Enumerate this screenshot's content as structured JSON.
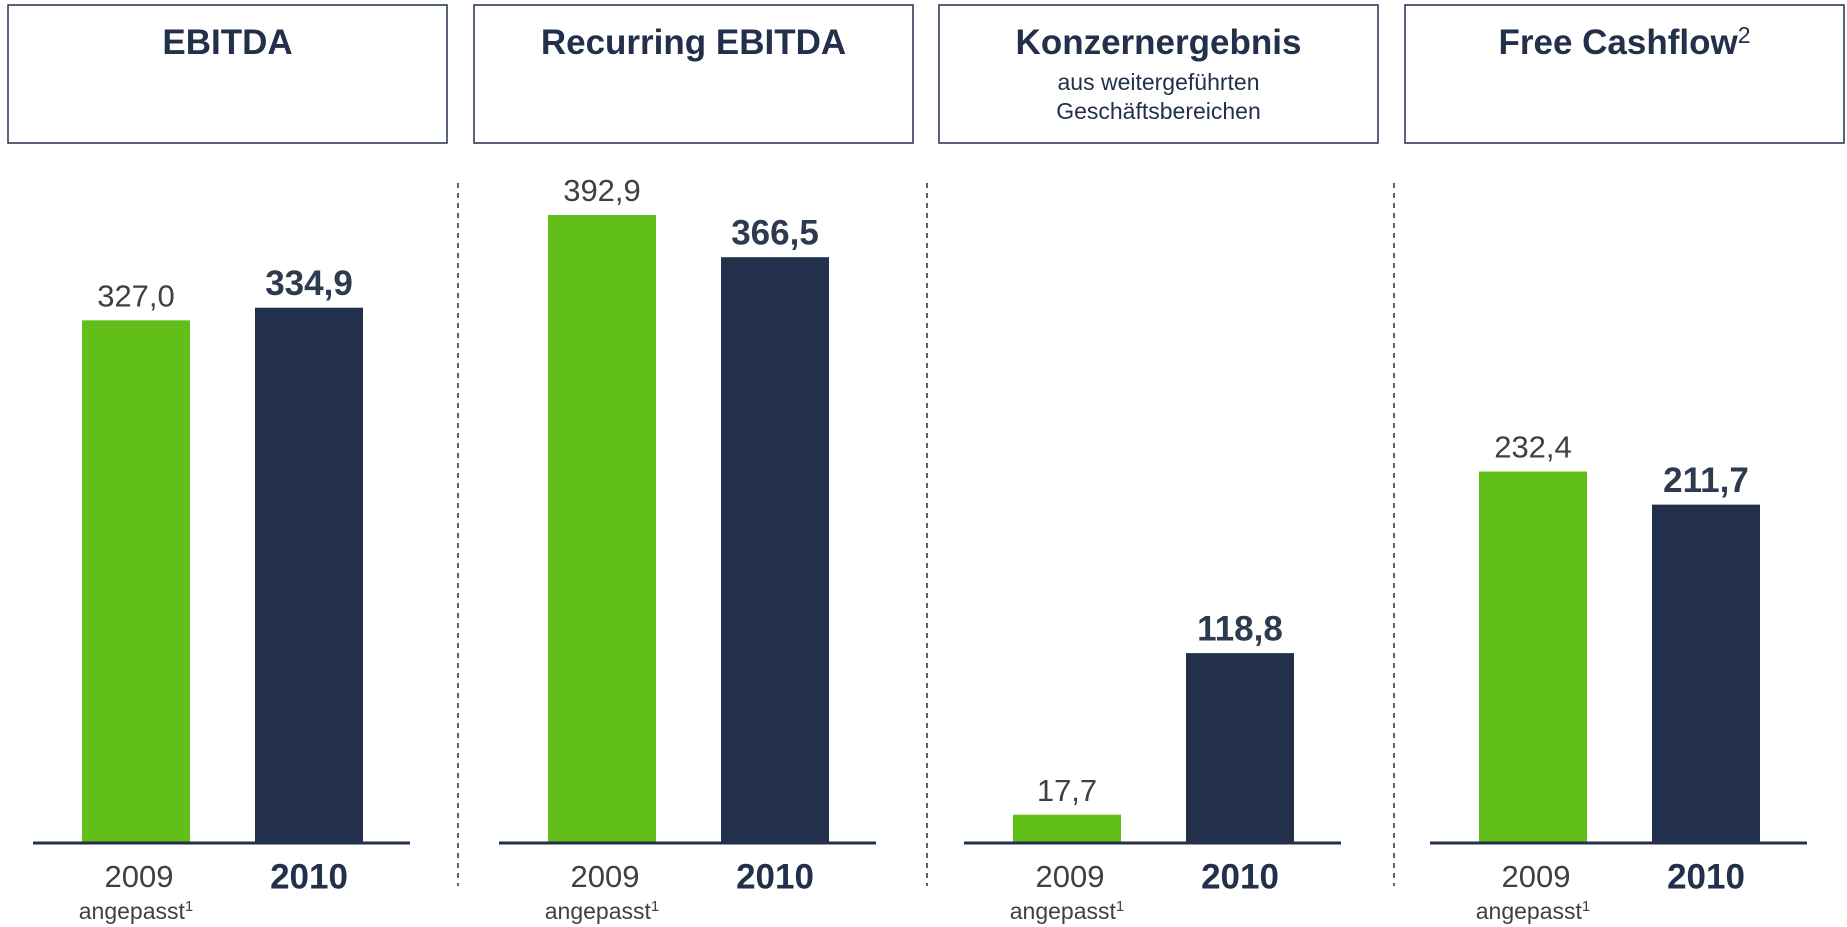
{
  "chart_data": [
    {
      "type": "bar",
      "title": "EBITDA",
      "categories": [
        "2009",
        "2010"
      ],
      "category_notes": [
        {
          "text": "angepasst",
          "sup": "1"
        },
        null
      ],
      "values": [
        327.0,
        334.9
      ],
      "value_labels": [
        "327,0",
        "334,9"
      ],
      "colors": [
        "#62bf1a",
        "#23304b"
      ]
    },
    {
      "type": "bar",
      "title": "Recurring EBITDA",
      "categories": [
        "2009",
        "2010"
      ],
      "category_notes": [
        {
          "text": "angepasst",
          "sup": "1"
        },
        null
      ],
      "values": [
        392.9,
        366.5
      ],
      "value_labels": [
        "392,9",
        "366,5"
      ],
      "colors": [
        "#62bf1a",
        "#23304b"
      ]
    },
    {
      "type": "bar",
      "title": "Konzernergebnis",
      "subtitle_lines": [
        "aus weitergeführten",
        "Geschäftsbereichen"
      ],
      "categories": [
        "2009",
        "2010"
      ],
      "category_notes": [
        {
          "text": "angepasst",
          "sup": "1"
        },
        null
      ],
      "values": [
        17.7,
        118.8
      ],
      "value_labels": [
        "17,7",
        "118,8"
      ],
      "colors": [
        "#62bf1a",
        "#23304b"
      ]
    },
    {
      "type": "bar",
      "title": "Free Cashflow",
      "title_sup": "2",
      "categories": [
        "2009",
        "2010"
      ],
      "category_notes": [
        {
          "text": "angepasst",
          "sup": "1"
        },
        null
      ],
      "values": [
        232.4,
        211.7
      ],
      "value_labels": [
        "232,4",
        "211,7"
      ],
      "colors": [
        "#62bf1a",
        "#23304b"
      ]
    }
  ]
}
